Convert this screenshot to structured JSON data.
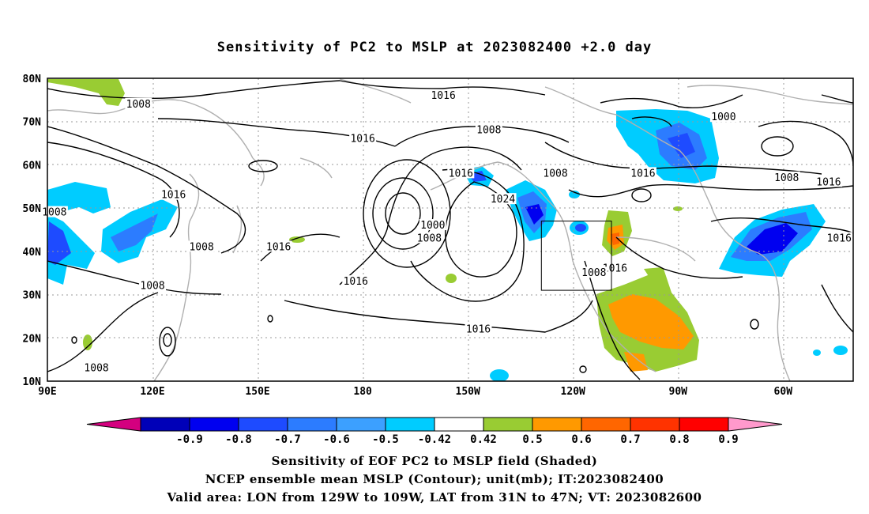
{
  "title": "Sensitivity of PC2 to MSLP at 2023082400 +2.0 day",
  "axes": {
    "lon_labels": [
      "90E",
      "120E",
      "150E",
      "180",
      "150W",
      "120W",
      "90W",
      "60W"
    ],
    "lat_labels": [
      "10N",
      "20N",
      "30N",
      "40N",
      "50N",
      "60N",
      "70N",
      "80N"
    ],
    "lon_range": [
      90,
      320
    ],
    "lat_range": [
      10,
      80
    ],
    "grid": true
  },
  "contour_labels": [
    {
      "text": "1016",
      "lon": 203,
      "lat": 76
    },
    {
      "text": "1008",
      "lon": 116,
      "lat": 74
    },
    {
      "text": "1008",
      "lon": 216,
      "lat": 68
    },
    {
      "text": "1000",
      "lon": 283,
      "lat": 71
    },
    {
      "text": "1016",
      "lon": 180,
      "lat": 66
    },
    {
      "text": "1016",
      "lon": 208,
      "lat": 58
    },
    {
      "text": "1008",
      "lon": 235,
      "lat": 58
    },
    {
      "text": "1016",
      "lon": 260,
      "lat": 58
    },
    {
      "text": "1008",
      "lon": 301,
      "lat": 57
    },
    {
      "text": "1016",
      "lon": 313,
      "lat": 56
    },
    {
      "text": "1024",
      "lon": 220,
      "lat": 52
    },
    {
      "text": "1016",
      "lon": 126,
      "lat": 53
    },
    {
      "text": "1008",
      "lon": 92,
      "lat": 49
    },
    {
      "text": "1000",
      "lon": 200,
      "lat": 46
    },
    {
      "text": "1008",
      "lon": 199,
      "lat": 43
    },
    {
      "text": "1008",
      "lon": 134,
      "lat": 41
    },
    {
      "text": "1016",
      "lon": 156,
      "lat": 41
    },
    {
      "text": "1016",
      "lon": 316,
      "lat": 43
    },
    {
      "text": "1016",
      "lon": 252,
      "lat": 36
    },
    {
      "text": "1008",
      "lon": 246,
      "lat": 35
    },
    {
      "text": "1016",
      "lon": 178,
      "lat": 33
    },
    {
      "text": "1008",
      "lon": 120,
      "lat": 32
    },
    {
      "text": "1016",
      "lon": 213,
      "lat": 22
    },
    {
      "text": "1008",
      "lon": 104,
      "lat": 13
    }
  ],
  "valid_box": {
    "lon_min": 231,
    "lon_max": 251,
    "lat_min": 31,
    "lat_max": 47
  },
  "colorbar": {
    "ticks": [
      "-0.9",
      "-0.8",
      "-0.7",
      "-0.6",
      "-0.5",
      "-0.42",
      "0.42",
      "0.5",
      "0.6",
      "0.7",
      "0.8",
      "0.9"
    ],
    "colors": [
      "#d4007f",
      "#0000b8",
      "#0000f0",
      "#1e4bff",
      "#2c7cff",
      "#3ca0ff",
      "#00ccff",
      "#ffffff",
      "#99cc33",
      "#ff9900",
      "#ff6600",
      "#ff3300",
      "#ff0000",
      "#ff99cc"
    ]
  },
  "captions": [
    "Sensitivity of EOF PC2 to MSLP field (Shaded)",
    "NCEP ensemble mean MSLP (Contour); unit(mb); IT:2023082400",
    "Valid area: LON from 129W to 109W, LAT from 31N to 47N; VT: 2023082600"
  ]
}
